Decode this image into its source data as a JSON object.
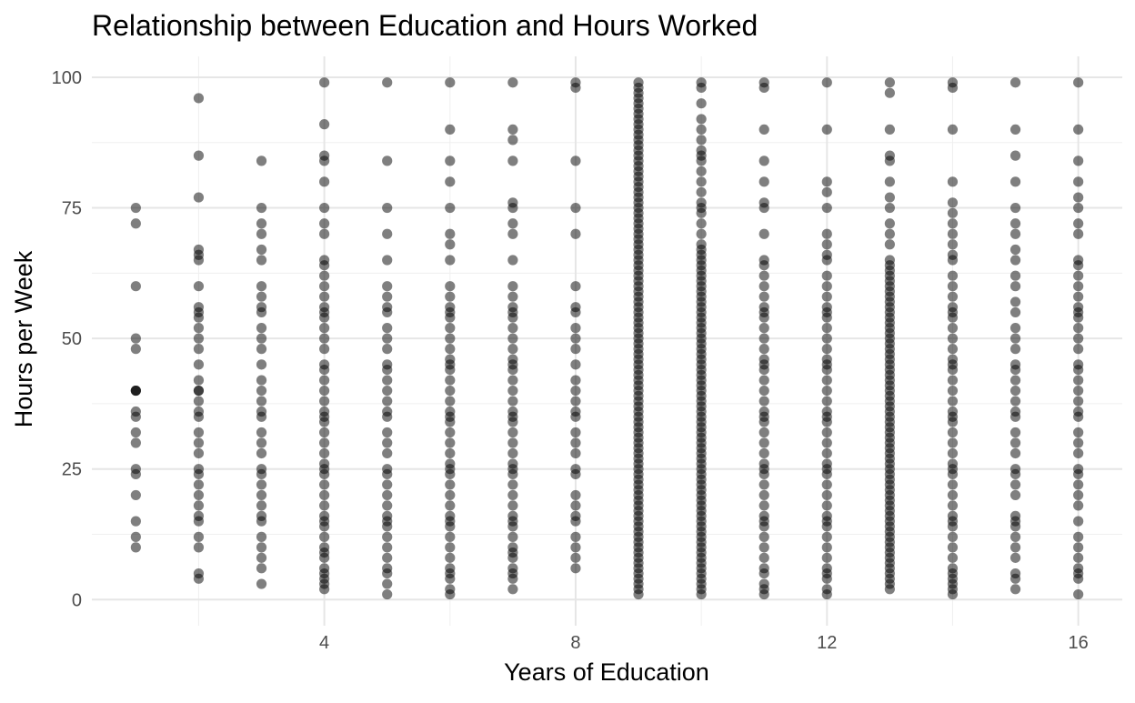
{
  "chart_data": {
    "type": "scatter",
    "title": "Relationship between Education and Hours Worked",
    "xlabel": "Years of Education",
    "ylabel": "Hours per Week",
    "xlim": [
      0.3,
      16.7
    ],
    "ylim": [
      -5,
      104
    ],
    "x_ticks": [
      4,
      8,
      12,
      16
    ],
    "y_ticks": [
      0,
      25,
      50,
      75,
      100
    ],
    "grid": true,
    "legend": "none",
    "point_color": "#000000",
    "point_opacity": 0.5,
    "columns": [
      {
        "x": 1,
        "y": [
          10,
          12,
          15,
          20,
          24,
          25,
          30,
          32,
          35,
          36,
          40,
          40,
          40,
          48,
          50,
          60,
          72,
          75
        ]
      },
      {
        "x": 2,
        "y": [
          4,
          5,
          10,
          12,
          15,
          16,
          18,
          20,
          22,
          24,
          25,
          28,
          30,
          32,
          35,
          36,
          38,
          40,
          40,
          42,
          45,
          48,
          50,
          52,
          54,
          55,
          56,
          60,
          65,
          66,
          67,
          77,
          85,
          96
        ]
      },
      {
        "x": 3,
        "y": [
          3,
          6,
          8,
          10,
          12,
          15,
          16,
          18,
          20,
          22,
          24,
          25,
          28,
          30,
          32,
          35,
          36,
          38,
          40,
          42,
          45,
          48,
          50,
          52,
          55,
          56,
          58,
          60,
          65,
          67,
          70,
          72,
          75,
          84
        ]
      },
      {
        "x": 4,
        "y": [
          2,
          3,
          4,
          5,
          6,
          8,
          9,
          10,
          12,
          14,
          15,
          16,
          18,
          20,
          22,
          24,
          25,
          26,
          28,
          30,
          32,
          34,
          35,
          36,
          38,
          40,
          42,
          44,
          45,
          48,
          50,
          52,
          54,
          55,
          56,
          58,
          60,
          62,
          64,
          65,
          70,
          72,
          75,
          80,
          84,
          85,
          91,
          99
        ]
      },
      {
        "x": 5,
        "y": [
          1,
          3,
          5,
          6,
          8,
          10,
          12,
          14,
          15,
          16,
          18,
          20,
          22,
          24,
          25,
          28,
          30,
          32,
          35,
          36,
          38,
          40,
          42,
          44,
          45,
          48,
          50,
          52,
          55,
          56,
          58,
          60,
          65,
          70,
          75,
          84,
          99
        ]
      },
      {
        "x": 6,
        "y": [
          1,
          2,
          4,
          5,
          6,
          8,
          10,
          12,
          14,
          15,
          16,
          18,
          20,
          22,
          24,
          25,
          26,
          28,
          30,
          32,
          34,
          35,
          36,
          38,
          40,
          42,
          44,
          45,
          46,
          48,
          50,
          52,
          54,
          55,
          56,
          58,
          60,
          65,
          68,
          70,
          75,
          80,
          84,
          90,
          99
        ]
      },
      {
        "x": 7,
        "y": [
          2,
          4,
          5,
          6,
          8,
          9,
          10,
          12,
          14,
          15,
          16,
          18,
          20,
          22,
          24,
          25,
          26,
          28,
          30,
          32,
          34,
          35,
          36,
          38,
          40,
          42,
          44,
          45,
          46,
          48,
          50,
          52,
          54,
          55,
          56,
          58,
          60,
          65,
          70,
          72,
          75,
          76,
          84,
          88,
          90,
          99
        ]
      },
      {
        "x": 8,
        "y": [
          6,
          8,
          10,
          12,
          15,
          16,
          18,
          20,
          24,
          25,
          28,
          30,
          32,
          35,
          36,
          38,
          40,
          42,
          45,
          48,
          50,
          52,
          55,
          56,
          60,
          70,
          75,
          84,
          98,
          99
        ]
      },
      {
        "x": 9,
        "y": [
          1,
          2,
          3,
          4,
          5,
          6,
          7,
          8,
          9,
          10,
          11,
          12,
          13,
          14,
          15,
          16,
          17,
          18,
          19,
          20,
          21,
          22,
          23,
          24,
          25,
          26,
          27,
          28,
          29,
          30,
          31,
          32,
          33,
          34,
          35,
          36,
          37,
          38,
          39,
          40,
          41,
          42,
          43,
          44,
          45,
          46,
          47,
          48,
          49,
          50,
          51,
          52,
          53,
          54,
          55,
          56,
          57,
          58,
          59,
          60,
          61,
          62,
          63,
          64,
          65,
          66,
          67,
          68,
          69,
          70,
          71,
          72,
          73,
          74,
          75,
          76,
          77,
          78,
          79,
          80,
          81,
          82,
          83,
          84,
          85,
          86,
          87,
          88,
          89,
          90,
          91,
          92,
          93,
          94,
          95,
          96,
          97,
          98,
          99
        ]
      },
      {
        "x": 10,
        "y": [
          1,
          2,
          3,
          4,
          5,
          6,
          7,
          8,
          9,
          10,
          11,
          12,
          13,
          14,
          15,
          16,
          17,
          18,
          19,
          20,
          21,
          22,
          23,
          24,
          25,
          26,
          27,
          28,
          29,
          30,
          31,
          32,
          33,
          34,
          35,
          36,
          37,
          38,
          39,
          40,
          41,
          42,
          43,
          44,
          45,
          46,
          47,
          48,
          49,
          50,
          51,
          52,
          53,
          54,
          55,
          56,
          57,
          58,
          59,
          60,
          61,
          62,
          63,
          64,
          65,
          66,
          67,
          68,
          70,
          72,
          74,
          75,
          76,
          78,
          80,
          82,
          84,
          85,
          86,
          88,
          90,
          92,
          95,
          98,
          99
        ]
      },
      {
        "x": 11,
        "y": [
          1,
          2,
          3,
          5,
          6,
          8,
          10,
          12,
          14,
          15,
          16,
          18,
          20,
          22,
          24,
          25,
          26,
          28,
          30,
          32,
          34,
          35,
          36,
          38,
          40,
          42,
          44,
          45,
          46,
          48,
          50,
          52,
          54,
          55,
          56,
          58,
          60,
          62,
          64,
          65,
          70,
          75,
          76,
          80,
          84,
          90,
          98,
          99
        ]
      },
      {
        "x": 12,
        "y": [
          1,
          2,
          4,
          5,
          6,
          8,
          10,
          12,
          14,
          15,
          16,
          18,
          20,
          22,
          24,
          25,
          26,
          28,
          30,
          32,
          34,
          35,
          36,
          38,
          40,
          42,
          44,
          45,
          46,
          48,
          50,
          52,
          54,
          55,
          56,
          58,
          60,
          62,
          65,
          66,
          68,
          70,
          75,
          78,
          80,
          90,
          99
        ]
      },
      {
        "x": 13,
        "y": [
          2,
          3,
          4,
          5,
          6,
          7,
          8,
          9,
          10,
          11,
          12,
          13,
          14,
          15,
          16,
          17,
          18,
          19,
          20,
          21,
          22,
          23,
          24,
          25,
          26,
          27,
          28,
          29,
          30,
          31,
          32,
          33,
          34,
          35,
          36,
          37,
          38,
          39,
          40,
          41,
          42,
          43,
          44,
          45,
          46,
          47,
          48,
          49,
          50,
          51,
          52,
          53,
          54,
          55,
          56,
          57,
          58,
          59,
          60,
          61,
          62,
          63,
          64,
          65,
          68,
          70,
          72,
          75,
          77,
          80,
          84,
          85,
          90,
          97,
          99
        ]
      },
      {
        "x": 14,
        "y": [
          1,
          2,
          3,
          4,
          5,
          6,
          8,
          10,
          12,
          14,
          15,
          16,
          18,
          20,
          22,
          24,
          25,
          26,
          28,
          30,
          32,
          34,
          35,
          36,
          38,
          40,
          42,
          44,
          45,
          46,
          48,
          50,
          52,
          54,
          55,
          56,
          58,
          60,
          62,
          65,
          66,
          68,
          70,
          72,
          74,
          76,
          80,
          90,
          98,
          99
        ]
      },
      {
        "x": 15,
        "y": [
          2,
          4,
          5,
          8,
          10,
          12,
          14,
          15,
          16,
          20,
          22,
          24,
          25,
          28,
          30,
          32,
          35,
          36,
          38,
          40,
          42,
          44,
          45,
          48,
          50,
          52,
          55,
          57,
          60,
          62,
          65,
          67,
          70,
          72,
          75,
          80,
          85,
          90,
          99
        ]
      },
      {
        "x": 16,
        "y": [
          1,
          4,
          5,
          6,
          8,
          10,
          12,
          15,
          18,
          20,
          22,
          24,
          25,
          28,
          30,
          32,
          35,
          36,
          38,
          40,
          42,
          44,
          45,
          48,
          50,
          52,
          54,
          55,
          56,
          58,
          60,
          62,
          64,
          65,
          70,
          72,
          75,
          77,
          80,
          84,
          90,
          99
        ]
      }
    ]
  }
}
